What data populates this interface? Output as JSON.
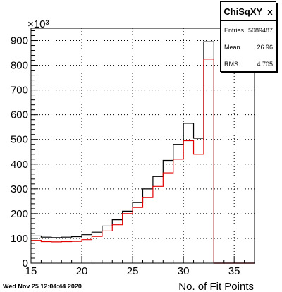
{
  "chart_data": {
    "type": "histogram",
    "title": "ChiSqXY_x",
    "xlabel": "No. of Fit Points",
    "ylabel": "",
    "y_multiplier_label": "×10³",
    "xlim": [
      15,
      37
    ],
    "ylim": [
      0,
      950
    ],
    "x_ticks": [
      15,
      20,
      25,
      30,
      35
    ],
    "y_ticks": [
      0,
      100,
      200,
      300,
      400,
      500,
      600,
      700,
      800,
      900
    ],
    "grid": true,
    "bin_edges": [
      15,
      16,
      17,
      18,
      19,
      20,
      21,
      22,
      23,
      24,
      25,
      26,
      27,
      28,
      29,
      30,
      31,
      32,
      33,
      34,
      35,
      36,
      37
    ],
    "series": [
      {
        "color": "#000000",
        "values": [
          110,
          105,
          103,
          105,
          107,
          115,
          125,
          150,
          175,
          210,
          245,
          300,
          350,
          415,
          480,
          565,
          505,
          895,
          0,
          0,
          0,
          0
        ]
      },
      {
        "color": "#e00000",
        "values": [
          92,
          87,
          86,
          87,
          88,
          95,
          108,
          130,
          155,
          200,
          225,
          265,
          310,
          365,
          420,
          495,
          440,
          825,
          0,
          0,
          0,
          0
        ]
      }
    ]
  },
  "stats": {
    "title": "ChiSqXY_x",
    "rows": [
      {
        "label": "Entries",
        "value": "5089487"
      },
      {
        "label": "Mean",
        "value": "26.96"
      },
      {
        "label": "RMS",
        "value": "4.705"
      }
    ]
  },
  "timestamp": "Wed Nov 25 12:04:44 2020"
}
